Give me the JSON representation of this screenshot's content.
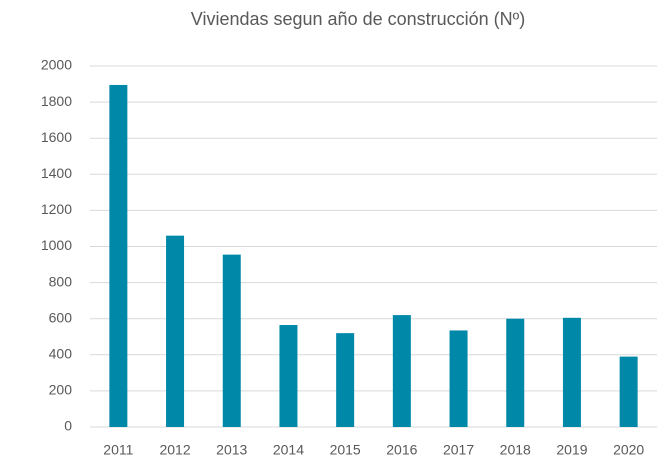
{
  "chart_data": {
    "type": "bar",
    "title": "Viviendas segun año de construcción (Nº)",
    "categories": [
      "2011",
      "2012",
      "2013",
      "2014",
      "2015",
      "2016",
      "2017",
      "2018",
      "2019",
      "2020"
    ],
    "values": [
      1895,
      1060,
      955,
      565,
      520,
      620,
      535,
      600,
      605,
      390
    ],
    "color": "#0088a8",
    "ylim": [
      0,
      2000
    ],
    "yticks": [
      0,
      200,
      400,
      600,
      800,
      1000,
      1200,
      1400,
      1600,
      1800,
      2000
    ],
    "grid": true
  }
}
